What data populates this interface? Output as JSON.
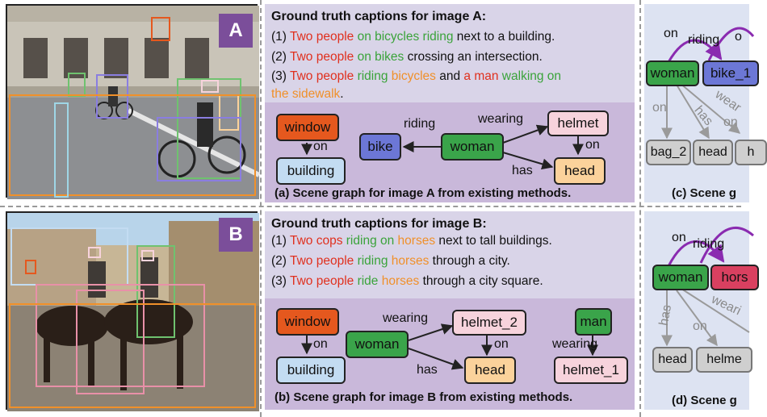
{
  "images": {
    "a": {
      "badge": "A"
    },
    "b": {
      "badge": "B"
    }
  },
  "captions": {
    "a": {
      "title": "Ground truth captions for image A:",
      "lines": [
        [
          {
            "t": "(1) ",
            "c": ""
          },
          {
            "t": "Two people",
            "c": "r"
          },
          {
            "t": " on bicycles riding",
            "c": "g"
          },
          {
            "t": " next to a building.",
            "c": ""
          }
        ],
        [
          {
            "t": "(2) ",
            "c": ""
          },
          {
            "t": "Two people",
            "c": "r"
          },
          {
            "t": " on bikes",
            "c": "g"
          },
          {
            "t": " crossing an intersection.",
            "c": ""
          }
        ],
        [
          {
            "t": "(3) ",
            "c": ""
          },
          {
            "t": "Two people",
            "c": "r"
          },
          {
            "t": " riding",
            "c": "g"
          },
          {
            "t": " bicycles",
            "c": "o"
          },
          {
            "t": " and ",
            "c": ""
          },
          {
            "t": "a man",
            "c": "r"
          },
          {
            "t": " walking on",
            "c": "g"
          }
        ],
        [
          {
            "t": "the sidewalk",
            "c": "o"
          },
          {
            "t": ".",
            "c": ""
          }
        ]
      ]
    },
    "b": {
      "title": "Ground truth captions for image B:",
      "lines": [
        [
          {
            "t": "(1) ",
            "c": ""
          },
          {
            "t": "Two cops",
            "c": "r"
          },
          {
            "t": " riding on",
            "c": "g"
          },
          {
            "t": " horses",
            "c": "o"
          },
          {
            "t": " next to tall buildings.",
            "c": ""
          }
        ],
        [
          {
            "t": "(2) ",
            "c": ""
          },
          {
            "t": "Two people",
            "c": "r"
          },
          {
            "t": " riding",
            "c": "g"
          },
          {
            "t": " horses",
            "c": "o"
          },
          {
            "t": " through a city.",
            "c": ""
          }
        ],
        [
          {
            "t": "(3) ",
            "c": ""
          },
          {
            "t": "Two people",
            "c": "r"
          },
          {
            "t": " ride",
            "c": "g"
          },
          {
            "t": " horses",
            "c": "o"
          },
          {
            "t": " through a city square.",
            "c": ""
          }
        ]
      ]
    }
  },
  "graph_a": {
    "nodes": {
      "window": "window",
      "building": "building",
      "bike": "bike",
      "woman": "woman",
      "helmet": "helmet",
      "head": "head"
    },
    "edges": {
      "on": "on",
      "riding": "riding",
      "wearing": "wearing",
      "on2": "on",
      "has": "has"
    },
    "caption": "(a) Scene graph for image  A from existing methods."
  },
  "graph_b": {
    "nodes": {
      "window": "window",
      "building": "building",
      "woman": "woman",
      "helmet_2": "helmet_2",
      "head": "head",
      "man": "man",
      "helmet_1": "helmet_1"
    },
    "edges": {
      "on": "on",
      "wearing": "wearing",
      "on2": "on",
      "has": "has",
      "wearing2": "wearing"
    },
    "caption": "(b) Scene graph for image B from existing methods."
  },
  "graph_c": {
    "nodes": {
      "woman": "woman",
      "bike": "bike_1",
      "bag": "bag_2",
      "head": "head",
      "h": "h"
    },
    "edges": {
      "on": "on",
      "riding": "riding",
      "on_top": "o",
      "on_left": "on",
      "has": "has",
      "wear": "wear",
      "on_right": "on"
    },
    "caption": "(c) Scene g"
  },
  "graph_d": {
    "nodes": {
      "woman": "woman",
      "horse": "hors",
      "head": "head",
      "helmet": "helme"
    },
    "edges": {
      "on": "on",
      "riding": "riding",
      "has": "has",
      "on2": "on",
      "wearing": "weari"
    },
    "caption": "(d) Scene g"
  },
  "colors": {
    "purple_edge": "#8a2bb0",
    "gray_edge": "#9a9a9a",
    "dark_edge": "#222222"
  }
}
